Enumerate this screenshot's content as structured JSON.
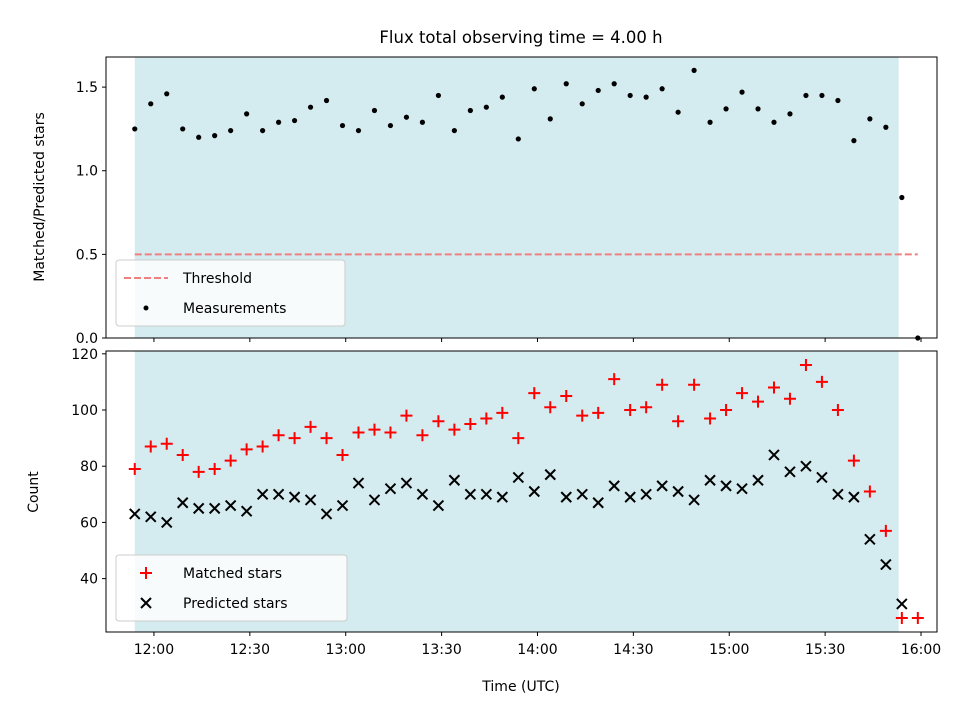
{
  "chart_data": [
    {
      "type": "scatter",
      "title": "Flux total observing time = 4.00 h",
      "xlabel": "",
      "ylabel": "Matched/Predicted stars",
      "xlim": [
        "11:45",
        "16:05"
      ],
      "ylim": [
        0,
        1.68
      ],
      "yticks": [
        0.0,
        0.5,
        1.0,
        1.5
      ],
      "ytick_labels": [
        "0.0",
        "0.5",
        "1.0",
        "1.5"
      ],
      "shaded_span": [
        "11:54",
        "15:53"
      ],
      "shaded_color": "#d4ebf0",
      "legend": {
        "position": "bottom-left",
        "entries": [
          "Threshold",
          "Measurements"
        ]
      },
      "threshold": {
        "name": "Threshold",
        "y": 0.5,
        "x_range": [
          "11:54",
          "15:59"
        ],
        "color": "#f08080",
        "style": "dashed"
      },
      "series": [
        {
          "name": "Measurements",
          "marker": "dot",
          "color": "#000000",
          "x": [
            "11:54",
            "11:59",
            "12:04",
            "12:09",
            "12:14",
            "12:19",
            "12:24",
            "12:29",
            "12:34",
            "12:39",
            "12:44",
            "12:49",
            "12:54",
            "12:59",
            "13:04",
            "13:09",
            "13:14",
            "13:19",
            "13:24",
            "13:29",
            "13:34",
            "13:39",
            "13:44",
            "13:49",
            "13:54",
            "13:59",
            "14:04",
            "14:09",
            "14:14",
            "14:19",
            "14:24",
            "14:29",
            "14:34",
            "14:39",
            "14:44",
            "14:49",
            "14:54",
            "14:59",
            "15:04",
            "15:09",
            "15:14",
            "15:19",
            "15:24",
            "15:29",
            "15:34",
            "15:39",
            "15:44",
            "15:49",
            "15:54",
            "15:59"
          ],
          "y": [
            1.25,
            1.4,
            1.46,
            1.25,
            1.2,
            1.21,
            1.24,
            1.34,
            1.24,
            1.29,
            1.3,
            1.38,
            1.42,
            1.27,
            1.24,
            1.36,
            1.27,
            1.32,
            1.29,
            1.45,
            1.24,
            1.36,
            1.38,
            1.44,
            1.19,
            1.49,
            1.31,
            1.52,
            1.4,
            1.48,
            1.52,
            1.45,
            1.44,
            1.49,
            1.35,
            1.6,
            1.29,
            1.37,
            1.47,
            1.37,
            1.29,
            1.34,
            1.45,
            1.45,
            1.42,
            1.18,
            1.31,
            1.26,
            0.84,
            0.0
          ]
        }
      ]
    },
    {
      "type": "scatter",
      "title": "",
      "xlabel": "Time (UTC)",
      "ylabel": "Count",
      "xlim": [
        "11:45",
        "16:05"
      ],
      "ylim": [
        21,
        121
      ],
      "yticks": [
        40,
        60,
        80,
        100,
        120
      ],
      "ytick_labels": [
        "40",
        "60",
        "80",
        "100",
        "120"
      ],
      "xticks": [
        "12:00",
        "12:30",
        "13:00",
        "13:30",
        "14:00",
        "14:30",
        "15:00",
        "15:30",
        "16:00"
      ],
      "xtick_labels": [
        "12:00",
        "12:30",
        "13:00",
        "13:30",
        "14:00",
        "14:30",
        "15:00",
        "15:30",
        "16:00"
      ],
      "shaded_span": [
        "11:54",
        "15:53"
      ],
      "shaded_color": "#d4ebf0",
      "legend": {
        "position": "bottom-left",
        "entries": [
          "Matched stars",
          "Predicted stars"
        ]
      },
      "series": [
        {
          "name": "Matched stars",
          "marker": "plus",
          "color": "#ff0000",
          "x": [
            "11:54",
            "11:59",
            "12:04",
            "12:09",
            "12:14",
            "12:19",
            "12:24",
            "12:29",
            "12:34",
            "12:39",
            "12:44",
            "12:49",
            "12:54",
            "12:59",
            "13:04",
            "13:09",
            "13:14",
            "13:19",
            "13:24",
            "13:29",
            "13:34",
            "13:39",
            "13:44",
            "13:49",
            "13:54",
            "13:59",
            "14:04",
            "14:09",
            "14:14",
            "14:19",
            "14:24",
            "14:29",
            "14:34",
            "14:39",
            "14:44",
            "14:49",
            "14:54",
            "14:59",
            "15:04",
            "15:09",
            "15:14",
            "15:19",
            "15:24",
            "15:29",
            "15:34",
            "15:39",
            "15:44",
            "15:49",
            "15:54",
            "15:59"
          ],
          "y": [
            79,
            87,
            88,
            84,
            78,
            79,
            82,
            86,
            87,
            91,
            90,
            94,
            90,
            84,
            92,
            93,
            92,
            98,
            91,
            96,
            93,
            95,
            97,
            99,
            90,
            106,
            101,
            105,
            98,
            99,
            111,
            100,
            101,
            109,
            96,
            109,
            97,
            100,
            106,
            103,
            108,
            104,
            116,
            110,
            100,
            82,
            71,
            57,
            26,
            26
          ]
        },
        {
          "name": "Predicted stars",
          "marker": "x",
          "color": "#000000",
          "x": [
            "11:54",
            "11:59",
            "12:04",
            "12:09",
            "12:14",
            "12:19",
            "12:24",
            "12:29",
            "12:34",
            "12:39",
            "12:44",
            "12:49",
            "12:54",
            "12:59",
            "13:04",
            "13:09",
            "13:14",
            "13:19",
            "13:24",
            "13:29",
            "13:34",
            "13:39",
            "13:44",
            "13:49",
            "13:54",
            "13:59",
            "14:04",
            "14:09",
            "14:14",
            "14:19",
            "14:24",
            "14:29",
            "14:34",
            "14:39",
            "14:44",
            "14:49",
            "14:54",
            "14:59",
            "15:04",
            "15:09",
            "15:14",
            "15:19",
            "15:24",
            "15:29",
            "15:34",
            "15:39",
            "15:44",
            "15:49",
            "15:54"
          ],
          "y": [
            63,
            62,
            60,
            67,
            65,
            65,
            66,
            64,
            70,
            70,
            69,
            68,
            63,
            66,
            74,
            68,
            72,
            74,
            70,
            66,
            75,
            70,
            70,
            69,
            76,
            71,
            77,
            69,
            70,
            67,
            73,
            69,
            70,
            73,
            71,
            68,
            75,
            73,
            72,
            75,
            84,
            78,
            80,
            76,
            70,
            69,
            54,
            45,
            31
          ]
        }
      ]
    }
  ]
}
